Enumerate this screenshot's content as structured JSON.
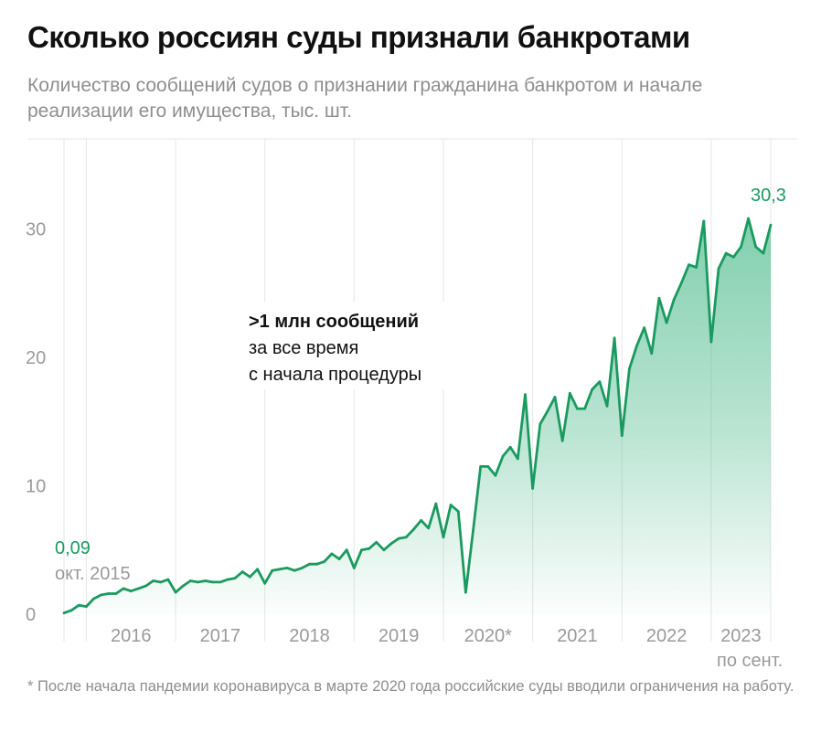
{
  "title": "Сколько россиян суды признали банкротами",
  "subtitle": "Количество сообщений судов о признании гражданина банкротом и начале реализации его имущества, тыс. шт.",
  "footnote": "* После начала пандемии коронавируса в марте 2020 года российские суды вводили ограничения на работу.",
  "callout": {
    "line1": ">1 млн сообщений",
    "line2": "за все время",
    "line3": "с начала процедуры"
  },
  "first_point": {
    "value_label": "0,09",
    "date_label": "окт. 2015"
  },
  "last_point": {
    "value_label": "30,3"
  },
  "last_year_note": "по сент.",
  "colors": {
    "line": "#1a9a5f",
    "fill": "#3fb583",
    "grid": "#e6e6e6",
    "text_muted": "#9a9a9a"
  },
  "chart_data": {
    "type": "area",
    "title": "Сколько россиян суды признали банкротами",
    "ylabel": "тыс. шт.",
    "xlabel": "",
    "ylim": [
      0,
      37
    ],
    "yticks": [
      0,
      10,
      20,
      30
    ],
    "x_start": "2015-10",
    "x_end": "2023-09",
    "frequency": "monthly",
    "year_labels": [
      "2016",
      "2017",
      "2018",
      "2019",
      "2020*",
      "2021",
      "2022",
      "2023"
    ],
    "values": [
      0.09,
      0.3,
      0.7,
      0.6,
      1.2,
      1.5,
      1.6,
      1.6,
      2.0,
      1.8,
      2.0,
      2.2,
      2.6,
      2.5,
      2.7,
      1.7,
      2.2,
      2.6,
      2.5,
      2.6,
      2.5,
      2.5,
      2.7,
      2.8,
      3.3,
      2.9,
      3.5,
      2.4,
      3.4,
      3.5,
      3.6,
      3.4,
      3.6,
      3.9,
      3.9,
      4.1,
      4.7,
      4.3,
      5.0,
      3.6,
      5.0,
      5.1,
      5.6,
      5.0,
      5.5,
      5.9,
      6.0,
      6.6,
      7.3,
      6.7,
      8.6,
      6.0,
      8.5,
      8.0,
      1.7,
      6.5,
      11.5,
      11.5,
      10.8,
      12.3,
      13.0,
      12.1,
      17.1,
      9.8,
      14.8,
      15.8,
      16.9,
      13.5,
      17.2,
      16.0,
      16.0,
      17.5,
      18.1,
      16.2,
      21.5,
      13.9,
      19.1,
      20.9,
      22.3,
      20.3,
      24.6,
      22.7,
      24.5,
      25.8,
      27.2,
      27.0,
      30.6,
      21.2,
      26.9,
      28.1,
      27.8,
      28.6,
      30.8,
      28.6,
      28.1,
      30.3
    ]
  }
}
